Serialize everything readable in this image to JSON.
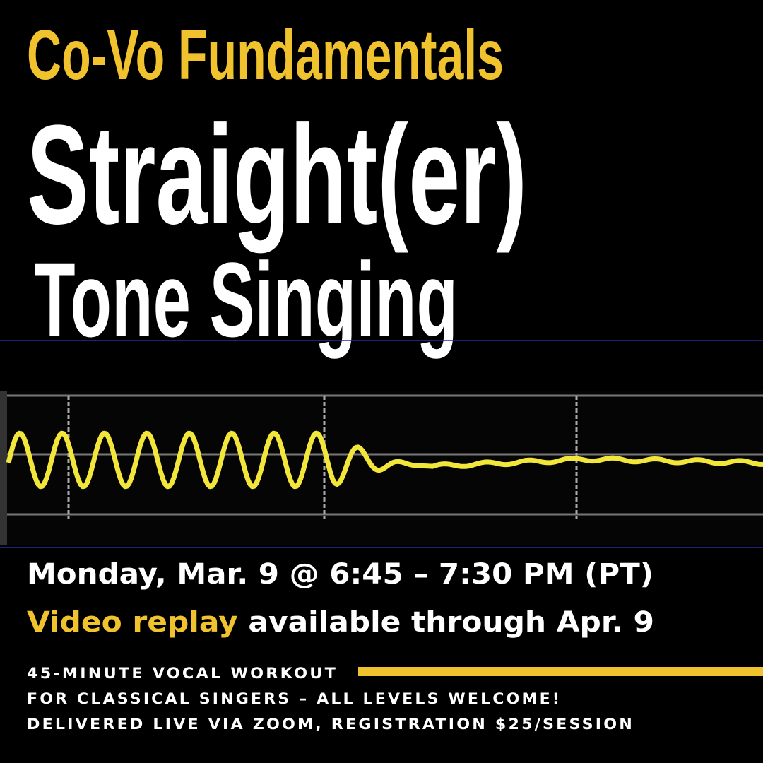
{
  "header": {
    "series_label": "Co-Vo Fundamentals"
  },
  "title": {
    "line1": "Straight(er)",
    "line2": "Tone Singing"
  },
  "schedule": {
    "date_time": "Monday, Mar. 9 @ 6:45 – 7:30 PM (PT)",
    "replay_highlight": "Video replay",
    "replay_rest": " available through Apr. 9"
  },
  "details": [
    "45-MINUTE VOCAL WORKOUT",
    "FOR CLASSICAL SINGERS – ALL LEVELS WELCOME!",
    "DELIVERED LIVE VIA ZOOM, REGISTRATION $25/SESSION"
  ]
}
